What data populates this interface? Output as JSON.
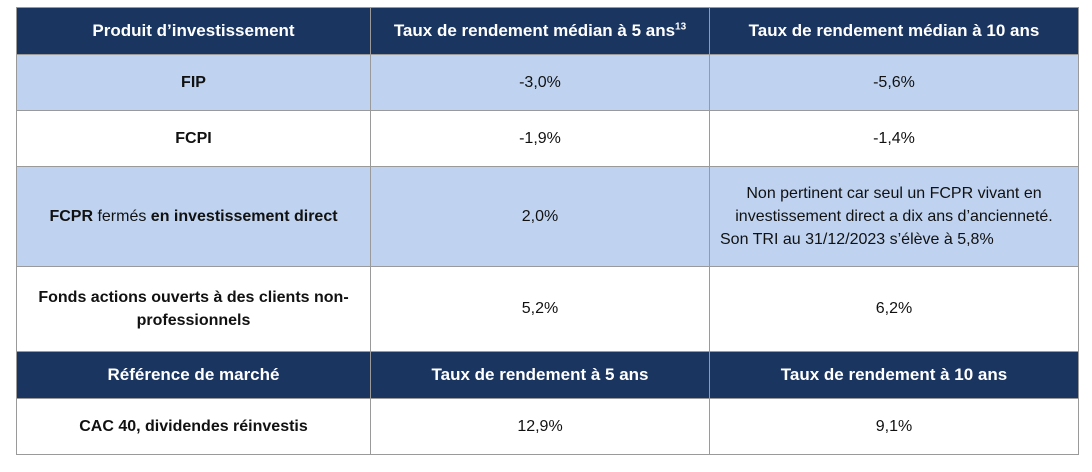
{
  "header1": {
    "col1": "Produit d’investissement",
    "col2": "Taux de rendement médian à 5 ans",
    "col2_footnote": "13",
    "col3": "Taux de rendement médian à 10 ans"
  },
  "rows": [
    {
      "product": "FIP",
      "r5": "-3,0%",
      "r10": "-5,6%"
    },
    {
      "product": "FCPI",
      "r5": "-1,9%",
      "r10": "-1,4%"
    },
    {
      "product_bold1": "FCPR",
      "product_plain": " fermés ",
      "product_bold2": "en investissement direct",
      "r5": "2,0%",
      "r10": "Non pertinent car seul un FCPR vivant en investissement direct a dix ans d’ancienneté. Son TRI au 31/12/2023 s’élève à 5,8%"
    },
    {
      "product": "Fonds actions ouverts à des clients non-professionnels",
      "r5": "5,2%",
      "r10": "6,2%"
    }
  ],
  "header2": {
    "col1": "Référence de marché",
    "col2": "Taux de rendement à 5 ans",
    "col3": "Taux de rendement à 10 ans"
  },
  "market_row": {
    "label": "CAC 40, dividendes réinvestis",
    "r5": "12,9%",
    "r10": "9,1%"
  },
  "colors": {
    "header_bg": "#1b3561",
    "row_blue": "#bfd3f0",
    "row_white": "#ffffff"
  }
}
